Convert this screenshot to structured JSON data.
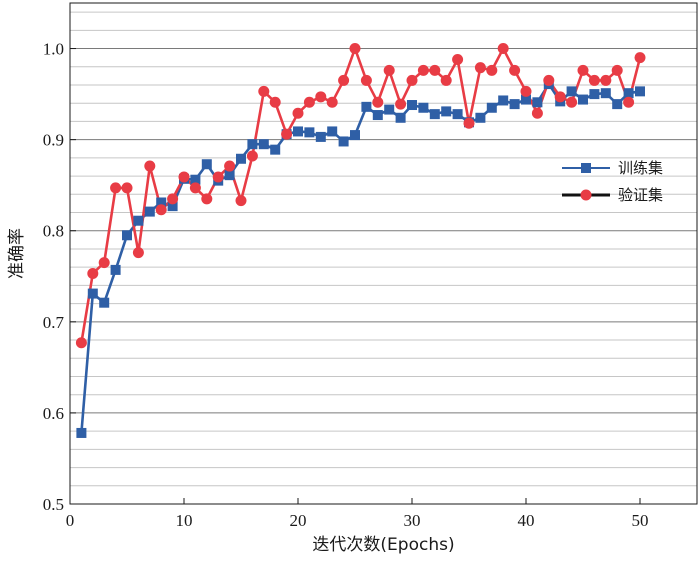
{
  "chart_data": {
    "type": "line",
    "xlabel": "迭代次数(Epochs)",
    "ylabel": "准确率",
    "xlim": [
      0,
      55
    ],
    "ylim": [
      0.5,
      1.05
    ],
    "x_ticks": [
      0,
      10,
      20,
      30,
      40,
      50
    ],
    "y_ticks": [
      0.5,
      0.6,
      0.7,
      0.8,
      0.9,
      1.0
    ],
    "x_tick_labels": [
      "0",
      "10",
      "20",
      "30",
      "40",
      "50"
    ],
    "y_tick_labels": [
      "0.5",
      "0.6",
      "0.7",
      "0.8",
      "0.9",
      "1.0"
    ],
    "grid": "horizontal",
    "legend_position": "right",
    "x": [
      1,
      2,
      3,
      4,
      5,
      6,
      7,
      8,
      9,
      10,
      11,
      12,
      13,
      14,
      15,
      16,
      17,
      18,
      19,
      20,
      21,
      22,
      23,
      24,
      25,
      26,
      27,
      28,
      29,
      30,
      31,
      32,
      33,
      34,
      35,
      36,
      37,
      38,
      39,
      40,
      41,
      42,
      43,
      44,
      45,
      46,
      47,
      48,
      49,
      50
    ],
    "series": [
      {
        "name": "训练集",
        "color": "#2f5fa6",
        "marker": "square",
        "values": [
          0.578,
          0.731,
          0.721,
          0.757,
          0.795,
          0.811,
          0.821,
          0.831,
          0.827,
          0.857,
          0.856,
          0.873,
          0.855,
          0.861,
          0.879,
          0.895,
          0.895,
          0.889,
          0.906,
          0.909,
          0.908,
          0.903,
          0.909,
          0.898,
          0.905,
          0.936,
          0.927,
          0.933,
          0.924,
          0.938,
          0.935,
          0.928,
          0.931,
          0.928,
          0.919,
          0.924,
          0.935,
          0.943,
          0.939,
          0.944,
          0.941,
          0.961,
          0.942,
          0.953,
          0.944,
          0.95,
          0.951,
          0.939,
          0.951,
          0.953
        ]
      },
      {
        "name": "验证集",
        "color": "#e83c45",
        "marker": "circle",
        "values": [
          0.677,
          0.753,
          0.765,
          0.847,
          0.847,
          0.776,
          0.871,
          0.823,
          0.835,
          0.859,
          0.847,
          0.835,
          0.859,
          0.871,
          0.833,
          0.882,
          0.953,
          0.941,
          0.906,
          0.929,
          0.941,
          0.947,
          0.941,
          0.965,
          1.0,
          0.965,
          0.941,
          0.976,
          0.939,
          0.965,
          0.976,
          0.976,
          0.965,
          0.988,
          0.918,
          0.979,
          0.976,
          1.0,
          0.976,
          0.953,
          0.929,
          0.965,
          0.947,
          0.941,
          0.976,
          0.965,
          0.965,
          0.976,
          0.941,
          0.99
        ]
      }
    ]
  }
}
